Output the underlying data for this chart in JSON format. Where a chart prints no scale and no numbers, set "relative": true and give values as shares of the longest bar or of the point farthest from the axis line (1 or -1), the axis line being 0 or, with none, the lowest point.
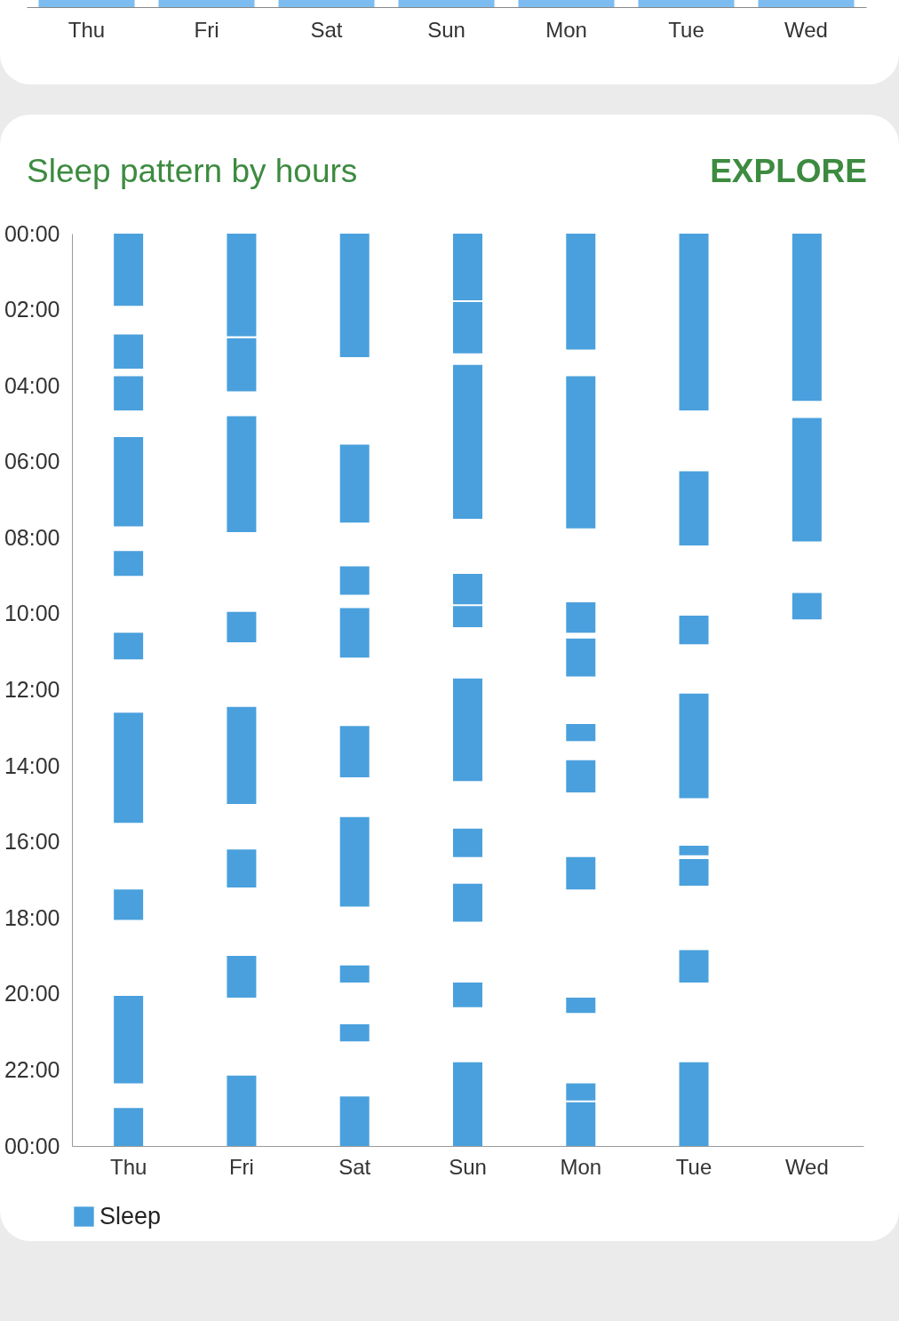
{
  "chart_data": [
    {
      "type": "bar",
      "categories": [
        "Thu",
        "Fri",
        "Sat",
        "Sun",
        "Mon",
        "Tue",
        "Wed"
      ],
      "values": [
        1,
        1,
        1,
        1,
        1,
        1,
        1
      ],
      "color": "#7cbcf0",
      "relative": true
    },
    {
      "type": "bar",
      "title": "Sleep pattern by hours",
      "annotations": [
        "EXPLORE"
      ],
      "categories": [
        "Thu",
        "Fri",
        "Sat",
        "Sun",
        "Mon",
        "Tue",
        "Wed"
      ],
      "series": [
        {
          "name": "Sleep",
          "color": "#4aa0dc",
          "x": [
            "Thu",
            "Thu",
            "Thu",
            "Thu",
            "Thu",
            "Thu",
            "Thu",
            "Thu",
            "Thu",
            "Thu",
            "Fri",
            "Fri",
            "Fri",
            "Fri",
            "Fri",
            "Fri",
            "Fri",
            "Fri",
            "Sat",
            "Sat",
            "Sat",
            "Sat",
            "Sat",
            "Sat",
            "Sat",
            "Sat",
            "Sat",
            "Sun",
            "Sun",
            "Sun",
            "Sun",
            "Sun",
            "Sun",
            "Sun",
            "Sun",
            "Sun",
            "Sun",
            "Mon",
            "Mon",
            "Mon",
            "Mon",
            "Mon",
            "Mon",
            "Mon",
            "Mon",
            "Mon",
            "Mon",
            "Tue",
            "Tue",
            "Tue",
            "Tue",
            "Tue",
            "Tue",
            "Tue",
            "Tue",
            "Wed",
            "Wed",
            "Wed"
          ],
          "base": [
            0,
            2.65,
            3.75,
            5.35,
            8.35,
            10.5,
            12.6,
            17.25,
            20.05,
            23.0,
            0,
            2.75,
            4.8,
            9.95,
            12.45,
            16.2,
            19.0,
            22.15,
            0,
            5.55,
            8.75,
            9.85,
            12.95,
            15.35,
            19.25,
            20.8,
            22.7,
            0,
            1.8,
            3.45,
            8.95,
            9.8,
            11.7,
            15.65,
            17.1,
            19.7,
            21.8,
            0,
            3.75,
            9.7,
            10.65,
            12.9,
            13.85,
            16.4,
            20.1,
            22.35,
            22.85,
            0,
            6.25,
            10.05,
            12.1,
            16.1,
            16.45,
            18.85,
            21.8,
            0,
            4.85,
            9.45
          ],
          "values": [
            1.9,
            0.9,
            0.9,
            2.35,
            0.65,
            0.7,
            2.9,
            0.8,
            2.3,
            1.0,
            2.7,
            1.4,
            3.05,
            0.8,
            2.55,
            1.0,
            1.1,
            1.85,
            3.25,
            2.05,
            0.75,
            1.3,
            1.35,
            2.35,
            0.45,
            0.45,
            1.3,
            1.75,
            1.35,
            4.05,
            0.8,
            0.55,
            2.7,
            0.75,
            1.0,
            0.65,
            2.2,
            3.05,
            4.0,
            0.8,
            1.0,
            0.45,
            0.85,
            0.85,
            0.4,
            0.45,
            1.15,
            4.65,
            1.95,
            0.75,
            2.75,
            0.25,
            0.7,
            0.85,
            2.2,
            4.4,
            3.25,
            0.7
          ]
        }
      ],
      "ylim": [
        24,
        0
      ],
      "yticks": [
        {
          "value": 0,
          "label": "00:00"
        },
        {
          "value": 2,
          "label": "02:00"
        },
        {
          "value": 4,
          "label": "04:00"
        },
        {
          "value": 6,
          "label": "06:00"
        },
        {
          "value": 8,
          "label": "08:00"
        },
        {
          "value": 10,
          "label": "10:00"
        },
        {
          "value": 12,
          "label": "12:00"
        },
        {
          "value": 14,
          "label": "14:00"
        },
        {
          "value": 16,
          "label": "16:00"
        },
        {
          "value": 18,
          "label": "18:00"
        },
        {
          "value": 20,
          "label": "20:00"
        },
        {
          "value": 22,
          "label": "22:00"
        },
        {
          "value": 24,
          "label": "00:00"
        }
      ],
      "legend": "bottom left",
      "grid": false
    }
  ]
}
